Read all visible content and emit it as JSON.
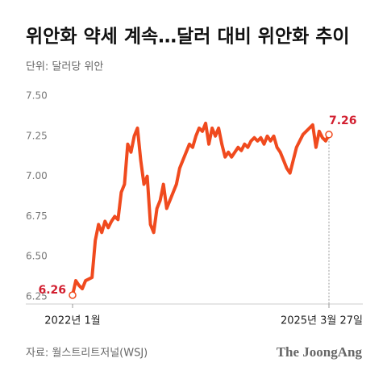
{
  "chart_data": {
    "type": "line",
    "title": "위안화 약세 계속…달러 대비 위안화 추이",
    "subtitle": "단위: 달러당 위안",
    "source": "자료: 월스트리트저널(WSJ)",
    "logo": "The JoongAng",
    "ylim": [
      6.25,
      7.5
    ],
    "yticks": [
      {
        "value": 7.5,
        "label": "7.50"
      },
      7.25,
      {
        "value": 7.0,
        "label": "7.00"
      },
      6.75,
      {
        "value": 6.5,
        "label": "6.50"
      },
      6.25
    ],
    "grid": false,
    "categories": [
      "2022년 1월",
      null,
      null,
      null,
      null,
      null,
      null,
      null,
      null,
      null,
      null,
      null,
      null,
      null,
      null,
      null,
      null,
      null,
      null,
      null,
      null,
      null,
      null,
      null,
      null,
      null,
      null,
      null,
      null,
      null,
      null,
      null,
      null,
      null,
      null,
      null,
      null,
      null,
      null,
      null,
      null,
      null,
      null,
      null,
      null,
      null,
      null,
      null,
      null,
      null,
      null,
      null,
      null,
      null,
      null,
      null,
      null,
      null,
      null,
      null,
      null,
      null,
      null,
      null,
      null,
      null,
      null,
      null,
      null,
      null,
      null,
      null,
      null,
      null,
      null,
      null,
      null,
      null,
      null,
      "2025년 3월 27일"
    ],
    "series": [
      {
        "name": "위안화",
        "color": "#f04a1e",
        "values": [
          6.26,
          6.35,
          6.32,
          6.3,
          6.35,
          6.36,
          6.37,
          6.6,
          6.7,
          6.65,
          6.72,
          6.68,
          6.72,
          6.75,
          6.73,
          6.9,
          6.95,
          7.2,
          7.15,
          7.25,
          7.3,
          7.1,
          6.95,
          7.0,
          6.7,
          6.65,
          6.8,
          6.85,
          6.95,
          6.8,
          6.85,
          6.9,
          6.95,
          7.05,
          7.1,
          7.15,
          7.2,
          7.18,
          7.25,
          7.3,
          7.28,
          7.33,
          7.2,
          7.3,
          7.25,
          7.3,
          7.2,
          7.12,
          7.15,
          7.12,
          7.15,
          7.18,
          7.16,
          7.2,
          7.18,
          7.22,
          7.24,
          7.22,
          7.24,
          7.2,
          7.25,
          7.22,
          7.25,
          7.18,
          7.15,
          7.1,
          7.05,
          7.02,
          7.1,
          7.18,
          7.22,
          7.26,
          7.28,
          7.3,
          7.32,
          7.18,
          7.28,
          7.24,
          7.22,
          7.26
        ]
      }
    ]
  }
}
